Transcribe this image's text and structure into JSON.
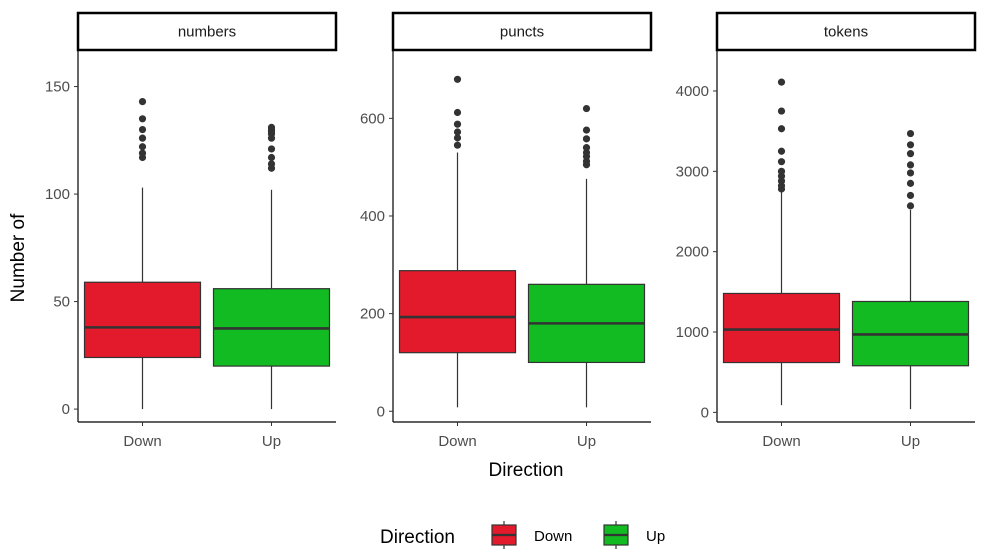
{
  "chart_data": {
    "type": "boxplot",
    "xlabel": "Direction",
    "ylabel": "Number of",
    "categories": [
      "Down",
      "Up"
    ],
    "colors": {
      "Down": "#E31A2C",
      "Up": "#12BB22"
    },
    "legend": {
      "title": "Direction",
      "entries": [
        "Down",
        "Up"
      ],
      "position": "bottom"
    },
    "grid": false,
    "panels": [
      {
        "label": "numbers",
        "ylim": [
          -6,
          167
        ],
        "yticks": [
          0,
          50,
          100,
          150
        ],
        "boxes": [
          {
            "category": "Down",
            "min": 0,
            "q1": 24,
            "median": 38,
            "q3": 59,
            "max": 103,
            "outliers": [
              117,
              119,
              122,
              126,
              130,
              135,
              143
            ]
          },
          {
            "category": "Up",
            "min": 0,
            "q1": 20,
            "median": 37.5,
            "q3": 56,
            "max": 102,
            "outliers": [
              112,
              114,
              117,
              121,
              126,
              128,
              129,
              130,
              131
            ]
          }
        ]
      },
      {
        "label": "puncts",
        "ylim": [
          -22,
          740
        ],
        "yticks": [
          0,
          200,
          400,
          600
        ],
        "boxes": [
          {
            "category": "Down",
            "min": 8,
            "q1": 120,
            "median": 193,
            "q3": 288,
            "max": 530,
            "outliers": [
              545,
              560,
              572,
              588,
              612,
              680
            ]
          },
          {
            "category": "Up",
            "min": 8,
            "q1": 100,
            "median": 180,
            "q3": 260,
            "max": 476,
            "outliers": [
              505,
              512,
              522,
              530,
              540,
              558,
              576,
              620
            ]
          }
        ]
      },
      {
        "label": "tokens",
        "ylim": [
          -120,
          4510
        ],
        "yticks": [
          0,
          1000,
          2000,
          3000,
          4000
        ],
        "boxes": [
          {
            "category": "Down",
            "min": 90,
            "q1": 620,
            "median": 1030,
            "q3": 1480,
            "max": 2740,
            "outliers": [
              2780,
              2820,
              2880,
              2940,
              3000,
              3120,
              3250,
              3530,
              3750,
              4110
            ]
          },
          {
            "category": "Up",
            "min": 40,
            "q1": 580,
            "median": 970,
            "q3": 1380,
            "max": 2520,
            "outliers": [
              2570,
              2700,
              2850,
              2980,
              3080,
              3220,
              3330,
              3470
            ]
          }
        ]
      }
    ]
  }
}
